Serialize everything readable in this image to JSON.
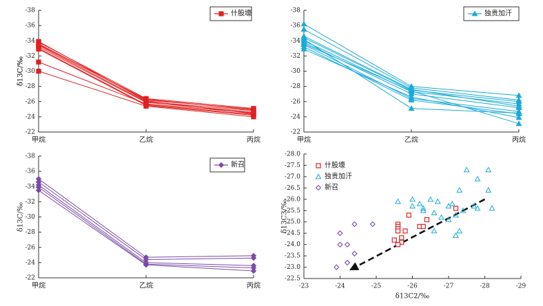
{
  "chart_data": [
    {
      "type": "line",
      "categories": [
        "甲烷",
        "乙烷",
        "丙烷"
      ],
      "ylabel": "δ13C/‰",
      "ylim": [
        -22,
        -38
      ],
      "yticks": [
        -38,
        -36,
        -34,
        -32,
        -30,
        -28,
        -26,
        -24,
        -22
      ],
      "legend": "什股壕",
      "legend_position": "top-right",
      "color": "#e02020",
      "marker": "square",
      "series": [
        {
          "values": [
            -31.2,
            -25.7,
            -24.5
          ]
        },
        {
          "values": [
            -30.0,
            -25.4,
            -24.0
          ]
        },
        {
          "values": [
            -33.0,
            -25.6,
            -24.3
          ]
        },
        {
          "values": [
            -33.2,
            -25.9,
            -24.6
          ]
        },
        {
          "values": [
            -33.4,
            -26.0,
            -24.8
          ]
        },
        {
          "values": [
            -33.6,
            -26.2,
            -25.0
          ]
        },
        {
          "values": [
            -33.8,
            -26.4,
            -25.1
          ]
        },
        {
          "values": [
            -33.9,
            -26.1,
            -24.4
          ]
        },
        {
          "values": [
            -32.9,
            -25.5,
            -24.2
          ]
        },
        {
          "values": [
            -33.5,
            -26.3,
            -24.9
          ]
        }
      ]
    },
    {
      "type": "line",
      "categories": [
        "甲烷",
        "乙烷",
        "丙烷"
      ],
      "ylabel": "δ13C/‰",
      "ylim": [
        -22,
        -38
      ],
      "yticks": [
        -38,
        -36,
        -34,
        -32,
        -30,
        -28,
        -26,
        -24,
        -22
      ],
      "legend": "独贵加汗",
      "legend_position": "top-right",
      "color": "#1aaad8",
      "marker": "triangle",
      "series": [
        {
          "values": [
            -36.2,
            -28.0,
            -26.8
          ]
        },
        {
          "values": [
            -35.5,
            -27.8,
            -26.2
          ]
        },
        {
          "values": [
            -34.6,
            -27.6,
            -25.4
          ]
        },
        {
          "values": [
            -34.4,
            -27.5,
            -26.0
          ]
        },
        {
          "values": [
            -34.0,
            -27.3,
            -25.7
          ]
        },
        {
          "values": [
            -33.8,
            -27.0,
            -25.2
          ]
        },
        {
          "values": [
            -33.5,
            -26.4,
            -24.7
          ]
        },
        {
          "values": [
            -33.2,
            -26.2,
            -24.4
          ]
        },
        {
          "values": [
            -32.9,
            -26.6,
            -23.9
          ]
        },
        {
          "values": [
            -34.2,
            -25.1,
            -24.5
          ]
        },
        {
          "values": [
            -33.6,
            -27.4,
            -23.1
          ]
        }
      ]
    },
    {
      "type": "line",
      "categories": [
        "甲烷",
        "乙烷",
        "丙烷"
      ],
      "ylabel": "δ13C/‰",
      "ylim": [
        -22,
        -38
      ],
      "yticks": [
        -38,
        -36,
        -34,
        -32,
        -30,
        -28,
        -26,
        -24,
        -22
      ],
      "legend": "新召",
      "legend_position": "top-right",
      "color": "#7a4aa8",
      "marker": "diamond",
      "series": [
        {
          "values": [
            -35.0,
            -24.7,
            -24.9
          ]
        },
        {
          "values": [
            -34.6,
            -24.4,
            -24.6
          ]
        },
        {
          "values": [
            -34.2,
            -24.0,
            -23.6
          ]
        },
        {
          "values": [
            -33.9,
            -23.8,
            -23.3
          ]
        },
        {
          "values": [
            -33.5,
            -23.7,
            -22.9
          ]
        }
      ]
    },
    {
      "type": "scatter",
      "xlabel": "δ13C2/‰",
      "ylabel": "δ13C3/‰",
      "xlim": [
        -23,
        -29
      ],
      "ylim": [
        -22.5,
        -28
      ],
      "xticks": [
        -23,
        -24,
        -25,
        -26,
        -27,
        -28,
        -29
      ],
      "yticks": [
        -28.0,
        -27.5,
        -27.0,
        -26.5,
        -26.0,
        -25.5,
        -25.0,
        -24.5,
        -24.0,
        -23.5,
        -23.0,
        -22.5
      ],
      "x_tick_labels": [
        "-23",
        "-24",
        "-25",
        "-26",
        "-27",
        "-28",
        "-29"
      ],
      "y_tick_labels": [
        "-28.0",
        "-27.5",
        "-27.0",
        "-26.5",
        "-26.0",
        "-25.5",
        "-25.0",
        "-24.5",
        "-24.0",
        "-23.5",
        "-23.0",
        "-22.5"
      ],
      "legend_position": "top-left",
      "trend_arrow": {
        "from": [
          -28.0,
          -26.0
        ],
        "to": [
          -24.3,
          -22.9
        ]
      },
      "series": [
        {
          "name": "什股壕",
          "marker": "square",
          "color": "#e02020",
          "points": [
            [
              -25.9,
              -25.3
            ],
            [
              -26.4,
              -25.1
            ],
            [
              -25.6,
              -24.9
            ],
            [
              -25.6,
              -24.8
            ],
            [
              -25.6,
              -24.7
            ],
            [
              -25.6,
              -24.6
            ],
            [
              -25.8,
              -24.6
            ],
            [
              -26.2,
              -24.8
            ],
            [
              -26.3,
              -24.8
            ],
            [
              -25.7,
              -24.3
            ],
            [
              -25.5,
              -24.2
            ],
            [
              -25.7,
              -24.1
            ],
            [
              -25.6,
              -24.0
            ],
            [
              -27.2,
              -25.6
            ]
          ]
        },
        {
          "name": "独贵加汗",
          "marker": "triangle",
          "color": "#1aaad8",
          "points": [
            [
              -27.5,
              -27.3
            ],
            [
              -28.1,
              -27.3
            ],
            [
              -27.8,
              -26.9
            ],
            [
              -28.1,
              -26.4
            ],
            [
              -27.3,
              -26.4
            ],
            [
              -25.6,
              -25.9
            ],
            [
              -26.0,
              -26.0
            ],
            [
              -26.2,
              -25.8
            ],
            [
              -26.0,
              -25.7
            ],
            [
              -26.3,
              -25.6
            ],
            [
              -26.5,
              -26.0
            ],
            [
              -26.7,
              -25.9
            ],
            [
              -27.1,
              -25.8
            ],
            [
              -27.7,
              -25.7
            ],
            [
              -27.8,
              -25.6
            ],
            [
              -28.2,
              -25.6
            ],
            [
              -26.6,
              -25.4
            ],
            [
              -27.2,
              -25.3
            ],
            [
              -27.4,
              -25.5
            ],
            [
              -27.0,
              -25.1
            ],
            [
              -26.8,
              -25.2
            ],
            [
              -26.6,
              -24.6
            ],
            [
              -27.2,
              -24.4
            ],
            [
              -27.3,
              -24.6
            ],
            [
              -26.3,
              -25.5
            ],
            [
              -27.0,
              -25.7
            ]
          ]
        },
        {
          "name": "新召",
          "marker": "diamond",
          "color": "#7a4aa8",
          "points": [
            [
              -24.4,
              -24.9
            ],
            [
              -24.9,
              -24.9
            ],
            [
              -24.0,
              -24.5
            ],
            [
              -24.0,
              -24.0
            ],
            [
              -24.2,
              -24.0
            ],
            [
              -24.4,
              -23.6
            ],
            [
              -24.2,
              -23.2
            ],
            [
              -23.9,
              -23.0
            ]
          ]
        }
      ]
    }
  ]
}
